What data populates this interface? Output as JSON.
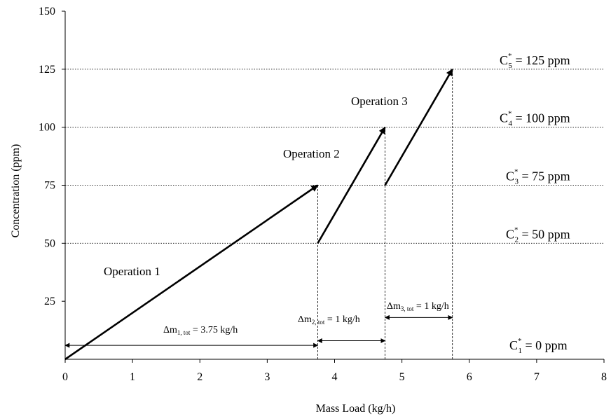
{
  "chart_data": {
    "type": "line",
    "title": "",
    "xlabel": "Mass Load (kg/h)",
    "ylabel": "Concentration (ppm)",
    "xlim": [
      0,
      8
    ],
    "ylim": [
      0,
      150
    ],
    "x_ticks": [
      "0",
      "1",
      "2",
      "3",
      "4",
      "5",
      "6",
      "7",
      "8"
    ],
    "y_ticks": [
      "25",
      "50",
      "75",
      "100",
      "125",
      "150"
    ],
    "series": [
      {
        "label": "Operation 1",
        "x": [
          0,
          3.75
        ],
        "y": [
          0,
          75
        ]
      },
      {
        "label": "Operation 2",
        "x": [
          3.75,
          4.75
        ],
        "y": [
          50,
          100
        ]
      },
      {
        "label": "Operation 3",
        "x": [
          4.75,
          5.75
        ],
        "y": [
          75,
          125
        ]
      }
    ],
    "concentration_levels": [
      {
        "value": 0,
        "main": "C",
        "sub": "1",
        "sup": "*",
        "rest": " = 0 ppm"
      },
      {
        "value": 50,
        "main": "C",
        "sub": "2",
        "sup": "*",
        "rest": " = 50 ppm"
      },
      {
        "value": 75,
        "main": "C",
        "sub": "3",
        "sup": "*",
        "rest": " = 75 ppm"
      },
      {
        "value": 100,
        "main": "C",
        "sub": "4",
        "sup": "*",
        "rest": " = 100 ppm"
      },
      {
        "value": 125,
        "main": "C",
        "sub": "5",
        "sup": "*",
        "rest": " = 125 ppm"
      }
    ],
    "vertical_guides": [
      3.75,
      4.75,
      5.75
    ],
    "mass_intervals": [
      {
        "from": 0,
        "to": 3.75,
        "y": 6,
        "prefix": "Δm",
        "sub": "1, tot",
        "rest": " = 3.75 kg/h"
      },
      {
        "from": 3.75,
        "to": 4.75,
        "y": 8,
        "prefix": "Δm",
        "sub": "2, tot",
        "rest": " = 1 kg/h"
      },
      {
        "from": 4.75,
        "to": 5.75,
        "y": 18,
        "prefix": "Δm",
        "sub": "3, tot",
        "rest": " = 1 kg/h"
      }
    ],
    "grid": false
  }
}
